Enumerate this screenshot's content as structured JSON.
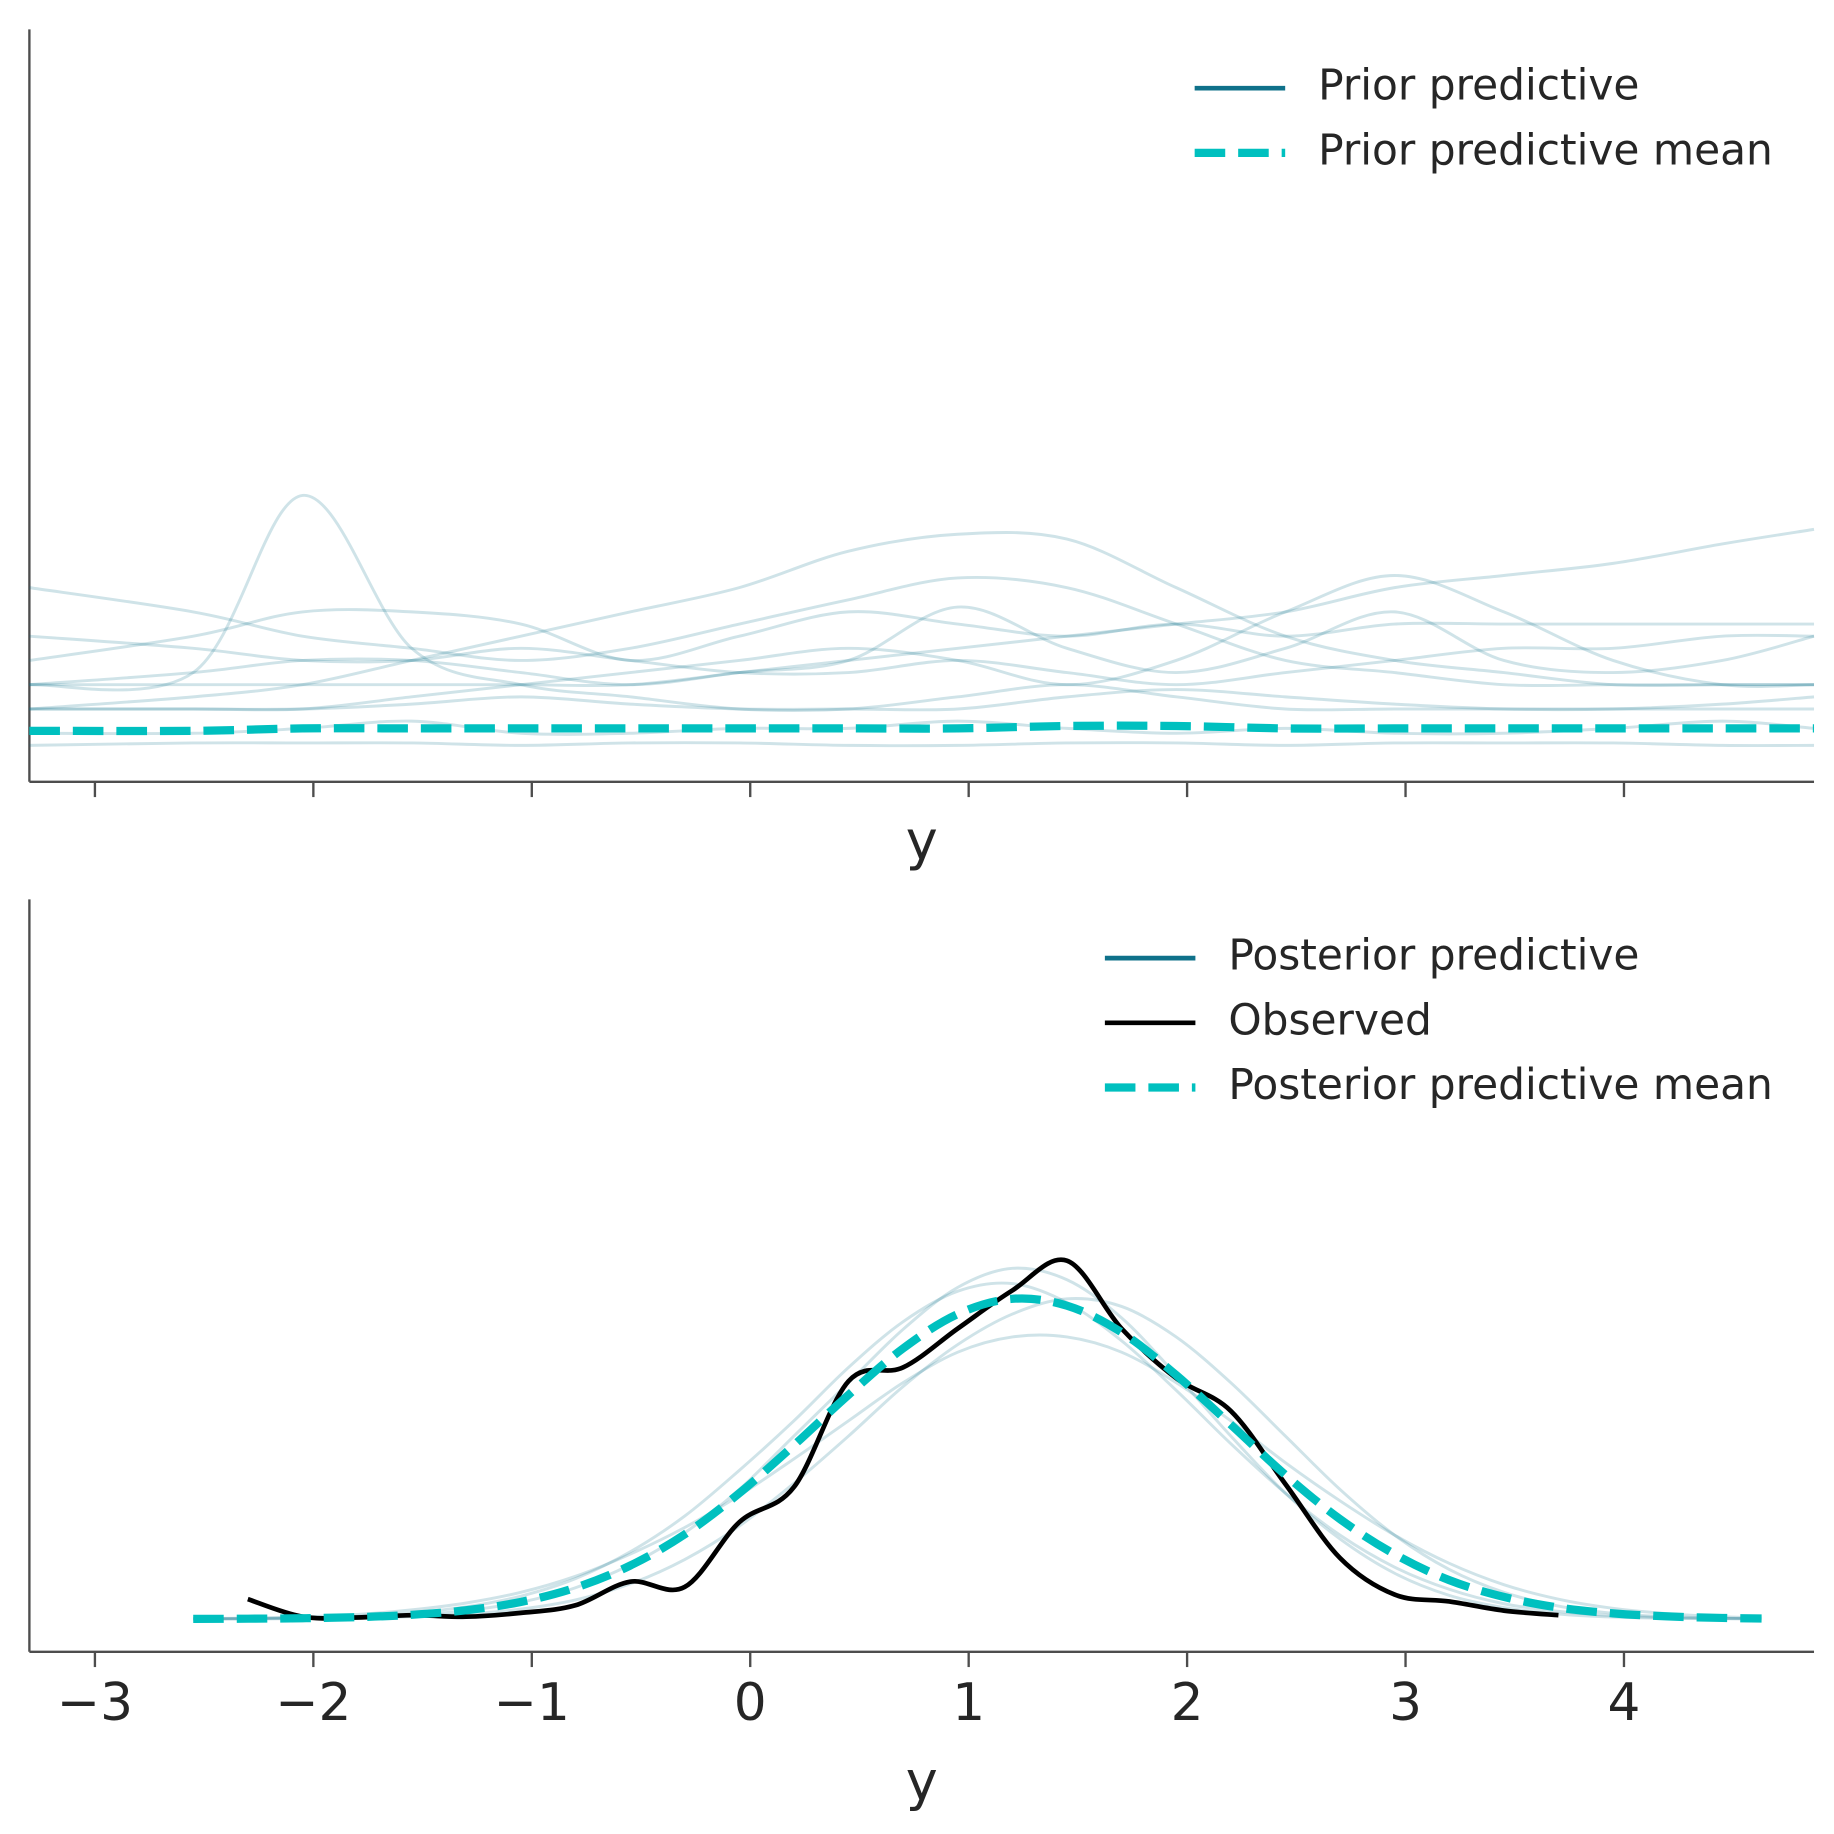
{
  "chart_data": [
    {
      "type": "line",
      "xlabel": "y",
      "legend": "upper right",
      "show_xtick_labels": false,
      "xlim": [
        -3.3,
        4.87
      ],
      "ylim": [
        -0.01,
        0.3
      ],
      "xticks": [
        -3,
        -2,
        -1,
        0,
        1,
        2,
        3,
        4
      ],
      "x": [
        -3.3,
        -2.55,
        -2.05,
        -1.55,
        -1.05,
        -0.55,
        -0.05,
        0.45,
        0.95,
        1.45,
        1.95,
        2.45,
        2.95,
        3.45,
        3.95,
        4.45,
        4.87
      ],
      "series": [
        {
          "name": "Prior predictive",
          "color": "#0f718a",
          "alpha": 0.2,
          "dashed": false,
          "draws": [
            [
              0.03,
              0.035,
              0.108,
              0.045,
              0.03,
              0.025,
              0.02,
              0.02,
              0.025,
              0.03,
              0.025,
              0.02,
              0.02,
              0.02,
              0.02,
              0.02,
              0.02
            ],
            [
              0.02,
              0.025,
              0.03,
              0.04,
              0.05,
              0.06,
              0.07,
              0.085,
              0.092,
              0.09,
              0.07,
              0.05,
              0.04,
              0.035,
              0.03,
              0.03,
              0.03
            ],
            [
              0.03,
              0.03,
              0.03,
              0.03,
              0.03,
              0.03,
              0.035,
              0.04,
              0.045,
              0.05,
              0.055,
              0.06,
              0.07,
              0.075,
              0.08,
              0.088,
              0.094
            ],
            [
              0.02,
              0.02,
              0.02,
              0.025,
              0.03,
              0.035,
              0.04,
              0.045,
              0.04,
              0.03,
              0.04,
              0.06,
              0.075,
              0.06,
              0.04,
              0.03,
              0.03
            ],
            [
              0.07,
              0.06,
              0.05,
              0.045,
              0.04,
              0.045,
              0.055,
              0.065,
              0.074,
              0.07,
              0.055,
              0.04,
              0.035,
              0.03,
              0.03,
              0.03,
              0.03
            ],
            [
              0.03,
              0.035,
              0.04,
              0.04,
              0.035,
              0.03,
              0.035,
              0.04,
              0.062,
              0.045,
              0.035,
              0.045,
              0.06,
              0.04,
              0.035,
              0.04,
              0.05
            ],
            [
              0.04,
              0.05,
              0.06,
              0.06,
              0.055,
              0.04,
              0.05,
              0.06,
              0.055,
              0.05,
              0.055,
              0.05,
              0.055,
              0.055,
              0.055,
              0.055,
              0.055
            ],
            [
              0.05,
              0.045,
              0.04,
              0.04,
              0.045,
              0.04,
              0.035,
              0.035,
              0.04,
              0.035,
              0.03,
              0.035,
              0.04,
              0.045,
              0.045,
              0.05,
              0.05
            ],
            [
              0.01,
              0.01,
              0.012,
              0.015,
              0.01,
              0.01,
              0.012,
              0.012,
              0.015,
              0.012,
              0.01,
              0.012,
              0.01,
              0.01,
              0.012,
              0.015,
              0.012
            ],
            [
              0.02,
              0.02,
              0.02,
              0.022,
              0.025,
              0.022,
              0.02,
              0.02,
              0.02,
              0.025,
              0.028,
              0.025,
              0.022,
              0.02,
              0.02,
              0.022,
              0.025
            ],
            [
              0.005,
              0.006,
              0.006,
              0.006,
              0.005,
              0.006,
              0.006,
              0.005,
              0.005,
              0.006,
              0.006,
              0.005,
              0.006,
              0.006,
              0.006,
              0.005,
              0.005
            ]
          ]
        },
        {
          "name": "Prior predictive mean",
          "color": "#00c0bf",
          "alpha": 1,
          "dashed": true,
          "values": [
            0.011,
            0.011,
            0.012,
            0.012,
            0.012,
            0.012,
            0.012,
            0.012,
            0.012,
            0.013,
            0.013,
            0.012,
            0.012,
            0.012,
            0.012,
            0.012,
            0.012
          ]
        }
      ]
    },
    {
      "type": "line",
      "xlabel": "y",
      "legend": "upper right",
      "show_xtick_labels": true,
      "xlim": [
        -3.3,
        4.87
      ],
      "ylim": [
        -0.043,
        0.944
      ],
      "xticks": [
        {
          "value": -3,
          "label": "−3"
        },
        {
          "value": -2,
          "label": "−2"
        },
        {
          "value": -1,
          "label": "−1"
        },
        0,
        1,
        2,
        3,
        4
      ],
      "x": [
        -2.55,
        -2.3,
        -2.05,
        -1.8,
        -1.55,
        -1.3,
        -1.05,
        -0.8,
        -0.55,
        -0.3,
        -0.05,
        0.2,
        0.45,
        0.7,
        0.95,
        1.2,
        1.45,
        1.7,
        1.95,
        2.2,
        2.45,
        2.7,
        2.95,
        3.2,
        3.45,
        3.7,
        3.95,
        4.2,
        4.45,
        4.63
      ],
      "series": [
        {
          "name": "Posterior predictive",
          "color": "#0f718a",
          "alpha": 0.2,
          "dashed": false,
          "draws": [
            [
              0.0002,
              0.0006,
              0.0015,
              0.0035,
              0.008,
              0.016,
              0.03,
              0.053,
              0.088,
              0.135,
              0.195,
              0.26,
              0.33,
              0.39,
              0.43,
              0.44,
              0.415,
              0.365,
              0.3,
              0.23,
              0.165,
              0.11,
              0.068,
              0.039,
              0.02,
              0.01,
              0.0045,
              0.0018,
              0.0007,
              0.0003
            ],
            [
              0.0005,
              0.0012,
              0.0028,
              0.006,
              0.012,
              0.021,
              0.035,
              0.056,
              0.085,
              0.12,
              0.162,
              0.21,
              0.26,
              0.31,
              0.35,
              0.37,
              0.37,
              0.35,
              0.31,
              0.26,
              0.205,
              0.155,
              0.11,
              0.073,
              0.045,
              0.026,
              0.014,
              0.007,
              0.003,
              0.0015
            ],
            [
              0.0001,
              0.0002,
              0.0005,
              0.0012,
              0.003,
              0.0065,
              0.013,
              0.025,
              0.046,
              0.078,
              0.122,
              0.178,
              0.24,
              0.305,
              0.36,
              0.4,
              0.42,
              0.41,
              0.37,
              0.31,
              0.24,
              0.17,
              0.11,
              0.065,
              0.035,
              0.017,
              0.0075,
              0.003,
              0.0011,
              0.0005
            ],
            [
              0.0001,
              0.0003,
              0.0008,
              0.002,
              0.005,
              0.011,
              0.022,
              0.041,
              0.071,
              0.113,
              0.17,
              0.24,
              0.31,
              0.38,
              0.435,
              0.46,
              0.445,
              0.395,
              0.32,
              0.24,
              0.165,
              0.105,
              0.06,
              0.031,
              0.015,
              0.0065,
              0.0025,
              0.0009,
              0.0003,
              0.0001
            ]
          ]
        },
        {
          "name": "Observed",
          "color": "#000000",
          "alpha": 1,
          "dashed": false,
          "values": [
            null,
            0.026,
            0.003,
            0.002,
            0.005,
            0.003,
            0.008,
            0.018,
            0.049,
            0.042,
            0.127,
            0.173,
            0.312,
            0.33,
            0.381,
            0.431,
            0.47,
            0.381,
            0.316,
            0.273,
            0.177,
            0.08,
            0.032,
            0.023,
            0.011,
            0.005,
            null,
            null,
            null,
            null
          ]
        },
        {
          "name": "Posterior predictive mean",
          "color": "#00c0bf",
          "alpha": 1,
          "dashed": true,
          "values": [
            0.0001,
            0.0004,
            0.001,
            0.0024,
            0.0055,
            0.0115,
            0.0224,
            0.041,
            0.07,
            0.111,
            0.165,
            0.228,
            0.294,
            0.355,
            0.4,
            0.42,
            0.411,
            0.376,
            0.32,
            0.255,
            0.189,
            0.131,
            0.085,
            0.051,
            0.029,
            0.015,
            0.0074,
            0.0034,
            0.0014,
            0.0007
          ]
        }
      ]
    }
  ]
}
